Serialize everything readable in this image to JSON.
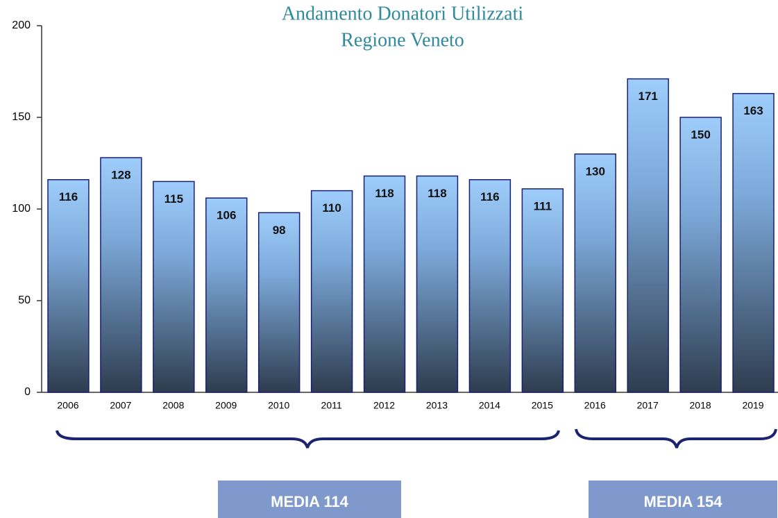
{
  "chart_data": {
    "type": "bar",
    "title": "Andamento Donatori Utilizzati",
    "subtitle": "Regione Veneto",
    "categories": [
      "2006",
      "2007",
      "2008",
      "2009",
      "2010",
      "2011",
      "2012",
      "2013",
      "2014",
      "2015",
      "2016",
      "2017",
      "2018",
      "2019"
    ],
    "values": [
      116,
      128,
      115,
      106,
      98,
      110,
      118,
      118,
      116,
      111,
      130,
      171,
      150,
      163
    ],
    "ylim": [
      0,
      200
    ],
    "yticks": [
      0,
      50,
      100,
      150,
      200
    ],
    "annotations": [
      "MEDIA 114",
      "MEDIA 154"
    ]
  }
}
